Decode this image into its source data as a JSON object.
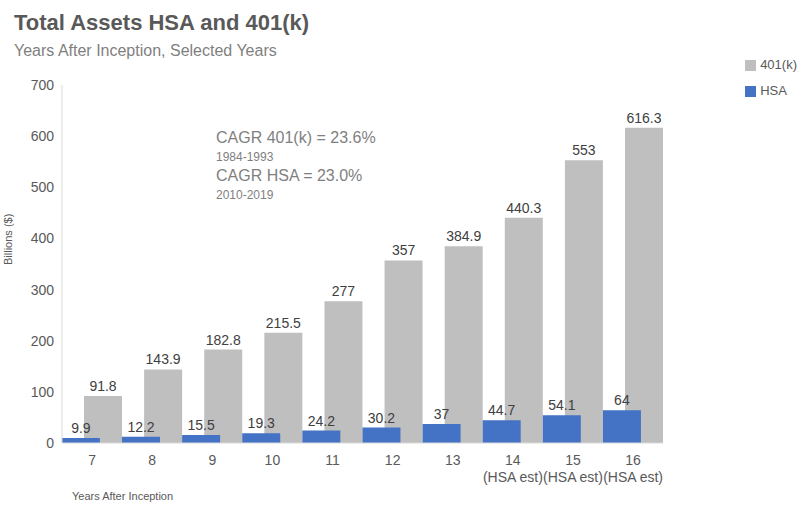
{
  "chart_data": {
    "type": "bar",
    "title": "Total Assets HSA and 401(k)",
    "subtitle": "Years After Inception, Selected Years",
    "x_label": "Years After  Inception",
    "y_label": "Billions ($)",
    "annotations": [
      "CAGR 401(k) = 23.6%",
      "1984-1993",
      "CAGR HSA = 23.0%",
      "2010-2019"
    ],
    "categories": [
      "7",
      "8",
      "9",
      "10",
      "11",
      "12",
      "13",
      "14\n(HSA est)",
      "15\n(HSA est)",
      "16\n(HSA est)"
    ],
    "series": [
      {
        "name": "401(k)",
        "color": "#bfbfbf",
        "values": [
          91.8,
          143.9,
          182.8,
          215.5,
          277.0,
          357.0,
          384.9,
          440.3,
          553.0,
          616.3
        ]
      },
      {
        "name": "HSA",
        "color": "#4472c4",
        "values": [
          9.9,
          12.2,
          15.5,
          19.3,
          24.2,
          30.2,
          37,
          44.7,
          54.1,
          64
        ]
      }
    ],
    "ylim": [
      0,
      700
    ],
    "yticks": [
      0,
      100,
      200,
      300,
      400,
      500,
      600,
      700
    ],
    "grid": false,
    "legend": "right",
    "data_labels": true
  }
}
